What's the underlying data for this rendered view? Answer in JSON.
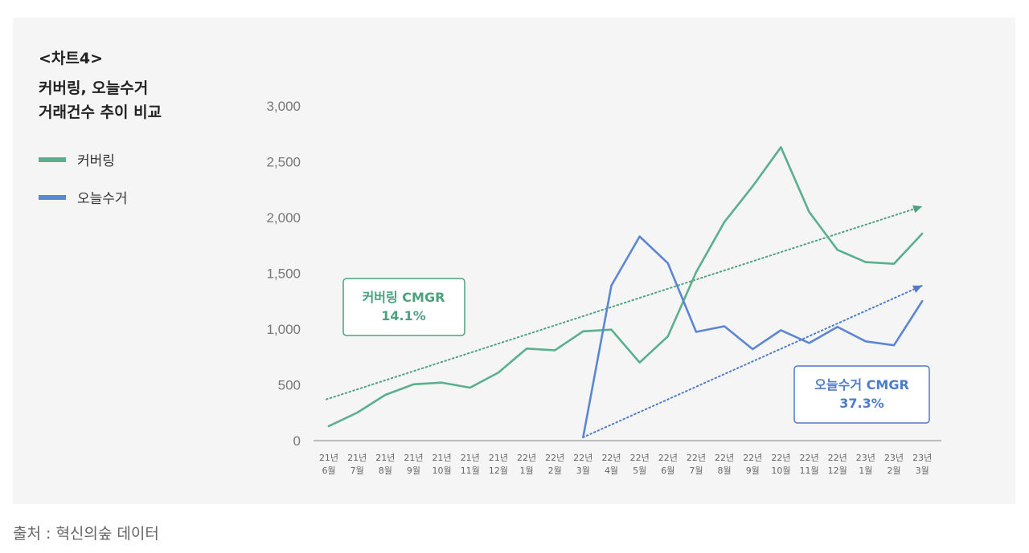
{
  "header": {
    "tag": "<차트4>",
    "title_line1": "커버링, 오늘수거",
    "title_line2": "거래건수 추이 비교"
  },
  "legend": [
    {
      "label": "커버링",
      "color": "#5aaf8e"
    },
    {
      "label": "오늘수거",
      "color": "#5b86d2"
    }
  ],
  "source": "출처 : 혁신의숲 데이터",
  "annotations": {
    "covering": {
      "line1": "커버링 CMGR",
      "line2": "14.1%",
      "color": "#4ca27f"
    },
    "oneul": {
      "line1": "오늘수거 CMGR",
      "line2": "37.3%",
      "color": "#4e7cc9"
    }
  },
  "chart_data": {
    "type": "line",
    "categories": [
      [
        "21년",
        "6월"
      ],
      [
        "21년",
        "7월"
      ],
      [
        "21년",
        "8월"
      ],
      [
        "21년",
        "9월"
      ],
      [
        "21년",
        "10월"
      ],
      [
        "21년",
        "11월"
      ],
      [
        "21년",
        "12월"
      ],
      [
        "22년",
        "1월"
      ],
      [
        "22년",
        "2월"
      ],
      [
        "22년",
        "3월"
      ],
      [
        "22년",
        "4월"
      ],
      [
        "22년",
        "5월"
      ],
      [
        "22년",
        "6월"
      ],
      [
        "22년",
        "7월"
      ],
      [
        "22년",
        "8월"
      ],
      [
        "22년",
        "9월"
      ],
      [
        "22년",
        "10월"
      ],
      [
        "22년",
        "11월"
      ],
      [
        "22년",
        "12월"
      ],
      [
        "23년",
        "1월"
      ],
      [
        "23년",
        "2월"
      ],
      [
        "23년",
        "3월"
      ]
    ],
    "ylim": [
      0,
      3000
    ],
    "yticks": [
      0,
      500,
      1000,
      1500,
      2000,
      2500,
      3000
    ],
    "ytick_labels": [
      "0",
      "500",
      "1,000",
      "1,500",
      "2,000",
      "2,500",
      "3,000"
    ],
    "series": [
      {
        "name": "커버링",
        "color": "#5aaf8e",
        "values": [
          130,
          250,
          410,
          505,
          520,
          475,
          610,
          825,
          810,
          980,
          995,
          700,
          935,
          1510,
          1960,
          2280,
          2630,
          2050,
          1710,
          1600,
          1585,
          1855
        ]
      },
      {
        "name": "오늘수거",
        "color": "#5b86d2",
        "values": [
          null,
          null,
          null,
          null,
          null,
          null,
          null,
          null,
          null,
          30,
          1390,
          1830,
          1590,
          975,
          1025,
          820,
          990,
          875,
          1020,
          890,
          855,
          1250
        ]
      }
    ],
    "trendlines": [
      {
        "series": "커버링",
        "color": "#4ca27f",
        "from": [
          0,
          370
        ],
        "to": [
          21,
          2100
        ]
      },
      {
        "series": "오늘수거",
        "color": "#4e7cc9",
        "from": [
          9,
          30
        ],
        "to": [
          21,
          1390
        ]
      }
    ]
  }
}
